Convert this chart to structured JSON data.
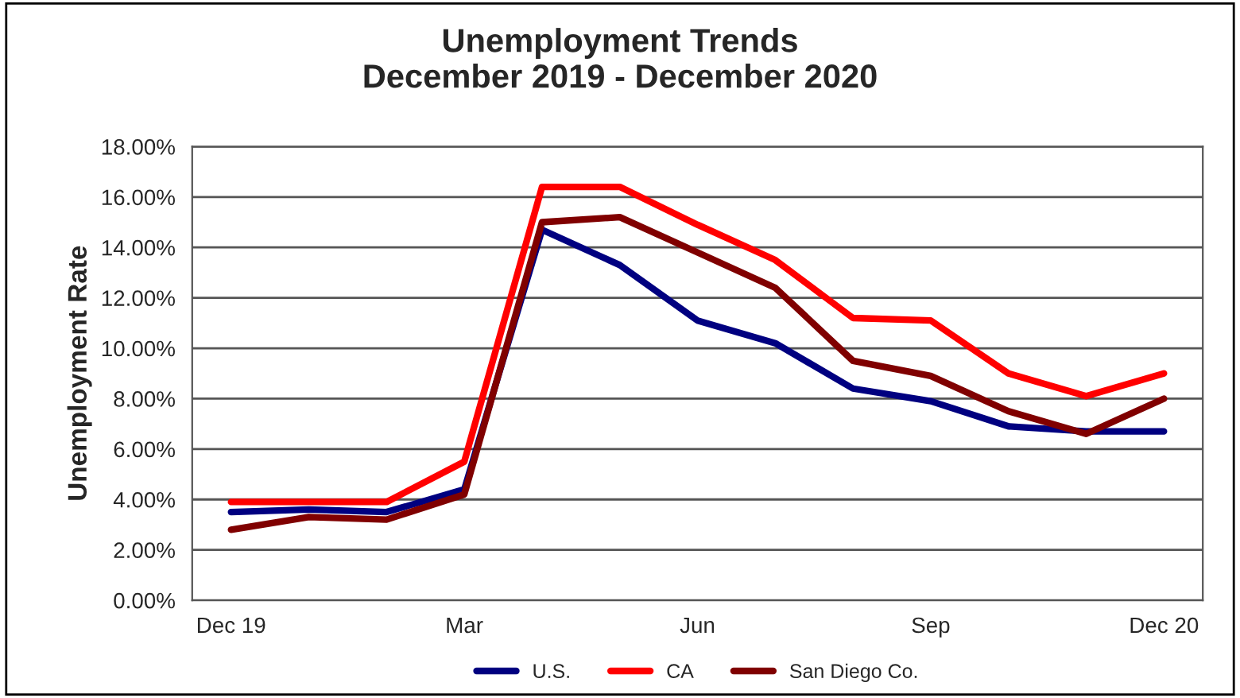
{
  "chart_data": {
    "type": "line",
    "title": "Unemployment Trends\nDecember 2019 - December 2020",
    "ylabel": "Unemployment Rate",
    "categories": [
      "Dec 19",
      null,
      null,
      "Mar",
      null,
      null,
      "Jun",
      null,
      null,
      "Sep",
      null,
      null,
      "Dec 20"
    ],
    "series": [
      {
        "name": "U.S.",
        "color": "#000080",
        "values": [
          3.5,
          3.6,
          3.5,
          4.4,
          14.7,
          13.3,
          11.1,
          10.2,
          8.4,
          7.9,
          6.9,
          6.7,
          6.7
        ]
      },
      {
        "name": "CA",
        "color": "#ff0000",
        "values": [
          3.9,
          3.9,
          3.9,
          5.5,
          16.4,
          16.4,
          14.9,
          13.5,
          11.2,
          11.1,
          9.0,
          8.1,
          9.0
        ]
      },
      {
        "name": "San Diego Co.",
        "color": "#800000",
        "values": [
          2.8,
          3.3,
          3.2,
          4.2,
          15.0,
          15.2,
          13.8,
          12.4,
          9.5,
          8.9,
          7.5,
          6.6,
          8.0
        ]
      }
    ],
    "ylim": [
      0,
      18
    ],
    "yticks": [
      {
        "value": 0,
        "label": "0.00%"
      },
      {
        "value": 2,
        "label": "2.00%"
      },
      {
        "value": 4,
        "label": "4.00%"
      },
      {
        "value": 6,
        "label": "6.00%"
      },
      {
        "value": 8,
        "label": "8.00%"
      },
      {
        "value": 10,
        "label": "10.00%"
      },
      {
        "value": 12,
        "label": "12.00%"
      },
      {
        "value": 14,
        "label": "14.00%"
      },
      {
        "value": 16,
        "label": "16.00%"
      },
      {
        "value": 18,
        "label": "18.00%"
      }
    ],
    "grid": "y",
    "legend": "bottom",
    "marker": "none",
    "line_style": "solid"
  }
}
